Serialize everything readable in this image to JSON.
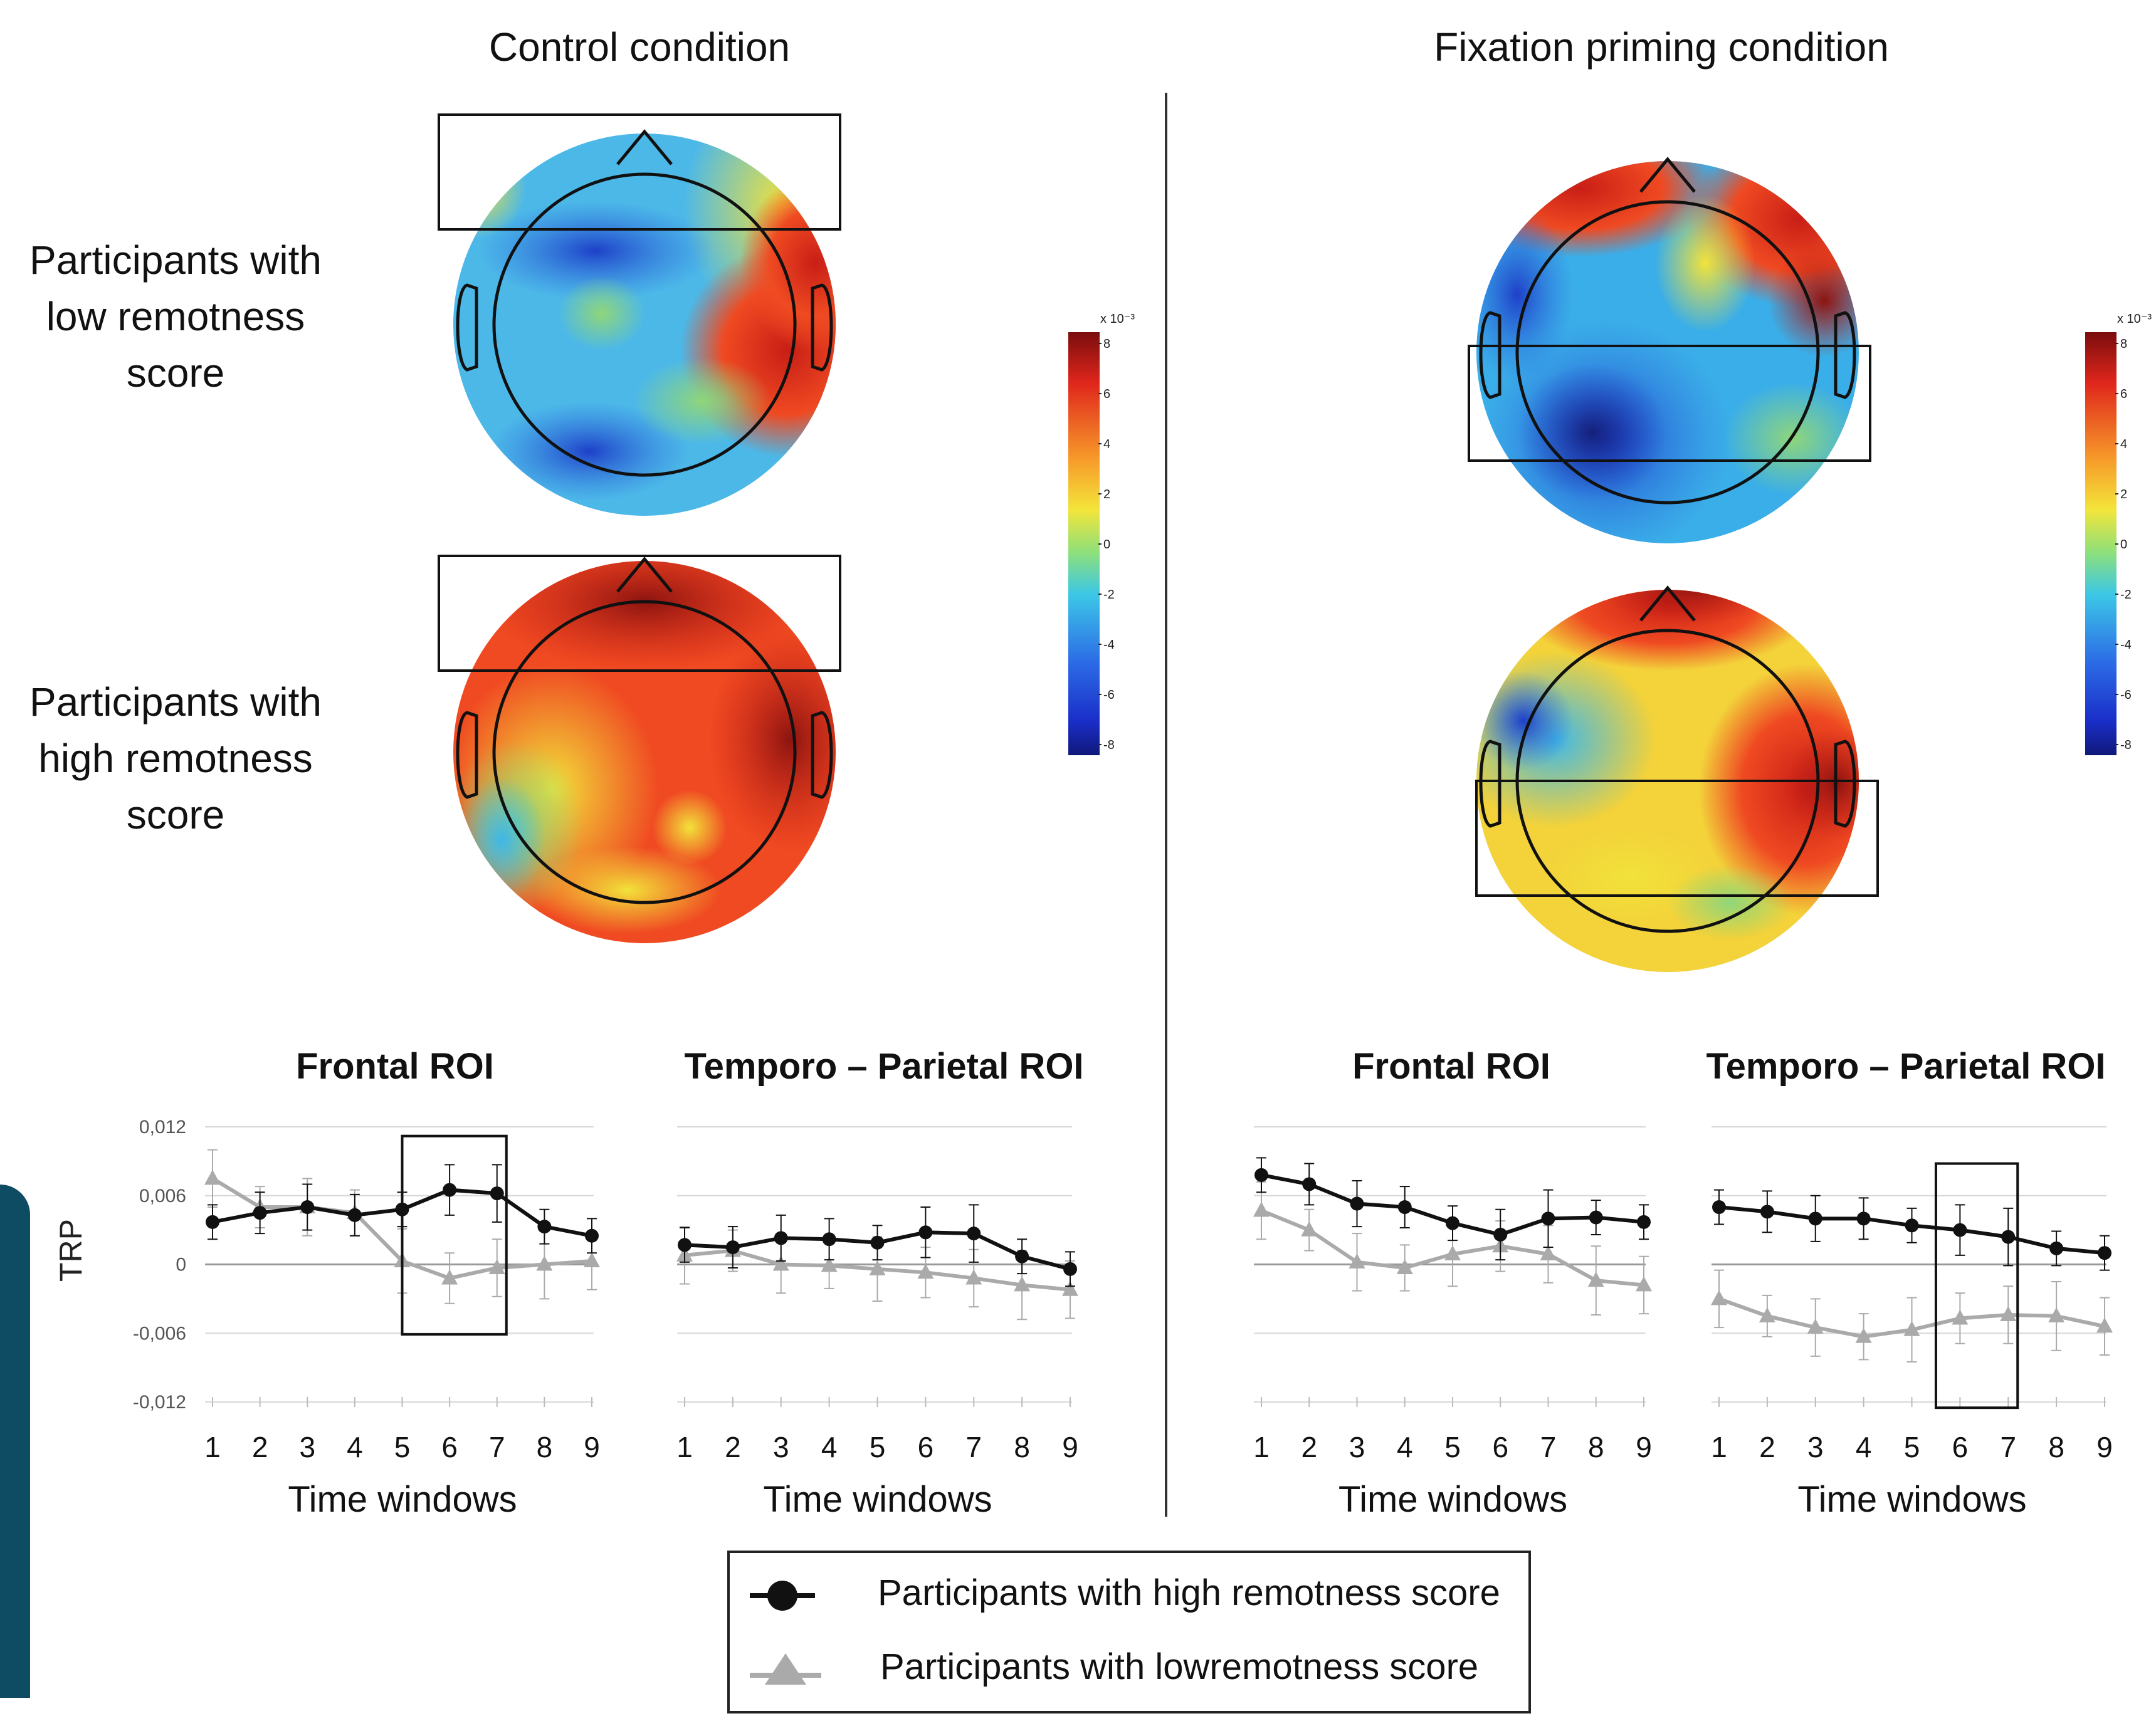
{
  "conditions": {
    "control": "Control condition",
    "fixation": "Fixation priming condition"
  },
  "row_labels": {
    "low": [
      "Participants with",
      "low remotness",
      "score"
    ],
    "high": [
      "Participants with",
      "high remotness",
      "score"
    ]
  },
  "colorbar": {
    "exponent_label": "x 10⁻³",
    "ticks": [
      "8",
      "6",
      "4",
      "2",
      "0",
      "-2",
      "-4",
      "-6",
      "-8"
    ]
  },
  "plot_titles": {
    "frontal": "Frontal ROI",
    "temporo_parietal": "Temporo – Parietal ROI"
  },
  "ylabel": "TRP",
  "xlabel": "Time windows",
  "legend": {
    "high": "Participants with high remotness score",
    "low": "Participants with lowremotness score"
  },
  "colors": {
    "high_series": "#111111",
    "low_series": "#aaaaaa",
    "accent_bar": "#0e4c64"
  },
  "chart_data": [
    {
      "type": "line",
      "panel": "Control condition",
      "title": "Frontal ROI",
      "xlabel": "Time windows",
      "ylabel": "TRP",
      "x": [
        1,
        2,
        3,
        4,
        5,
        6,
        7,
        8,
        9
      ],
      "yticks": [
        "0,012",
        "0,006",
        "0",
        "-0,006",
        "-0,012"
      ],
      "ylim": [
        -0.012,
        0.012
      ],
      "highlight_x": [
        5,
        7
      ],
      "series": [
        {
          "name": "Participants with high remotness score",
          "values": [
            0.0037,
            0.0045,
            0.005,
            0.0043,
            0.0048,
            0.0065,
            0.0062,
            0.0033,
            0.0025
          ]
        },
        {
          "name": "Participants with lowremotness score",
          "values": [
            0.0075,
            0.005,
            0.005,
            0.0045,
            0.0003,
            -0.0012,
            -0.0003,
            0.0,
            0.0003
          ]
        }
      ]
    },
    {
      "type": "line",
      "panel": "Control condition",
      "title": "Temporo – Parietal ROI",
      "xlabel": "Time windows",
      "x": [
        1,
        2,
        3,
        4,
        5,
        6,
        7,
        8,
        9
      ],
      "ylim": [
        -0.012,
        0.012
      ],
      "series": [
        {
          "name": "Participants with high remotness score",
          "values": [
            0.0017,
            0.0015,
            0.0023,
            0.0022,
            0.0019,
            0.0028,
            0.0027,
            0.0007,
            -0.0004
          ]
        },
        {
          "name": "Participants with lowremotness score",
          "values": [
            0.0008,
            0.0012,
            0.0,
            -0.0001,
            -0.0004,
            -0.0007,
            -0.0012,
            -0.0018,
            -0.0022
          ]
        }
      ]
    },
    {
      "type": "line",
      "panel": "Fixation priming condition",
      "title": "Frontal ROI",
      "xlabel": "Time windows",
      "x": [
        1,
        2,
        3,
        4,
        5,
        6,
        7,
        8,
        9
      ],
      "ylim": [
        -0.012,
        0.012
      ],
      "series": [
        {
          "name": "Participants with high remotness score",
          "values": [
            0.0078,
            0.007,
            0.0053,
            0.005,
            0.0036,
            0.0026,
            0.004,
            0.0041,
            0.0037
          ]
        },
        {
          "name": "Participants with lowremotness score",
          "values": [
            0.0047,
            0.003,
            0.0002,
            -0.0003,
            0.0009,
            0.0016,
            0.0009,
            -0.0014,
            -0.0018
          ]
        }
      ]
    },
    {
      "type": "line",
      "panel": "Fixation priming condition",
      "title": "Temporo – Parietal ROI",
      "xlabel": "Time windows",
      "x": [
        1,
        2,
        3,
        4,
        5,
        6,
        7,
        8,
        9
      ],
      "ylim": [
        -0.012,
        0.012
      ],
      "highlight_x": [
        5.5,
        7
      ],
      "series": [
        {
          "name": "Participants with high remotness score",
          "values": [
            0.005,
            0.0046,
            0.004,
            0.004,
            0.0034,
            0.003,
            0.0024,
            0.0014,
            0.001
          ]
        },
        {
          "name": "Participants with lowremotness score",
          "values": [
            -0.003,
            -0.0045,
            -0.0055,
            -0.0063,
            -0.0057,
            -0.0047,
            -0.0044,
            -0.0045,
            -0.0054
          ]
        }
      ]
    }
  ]
}
